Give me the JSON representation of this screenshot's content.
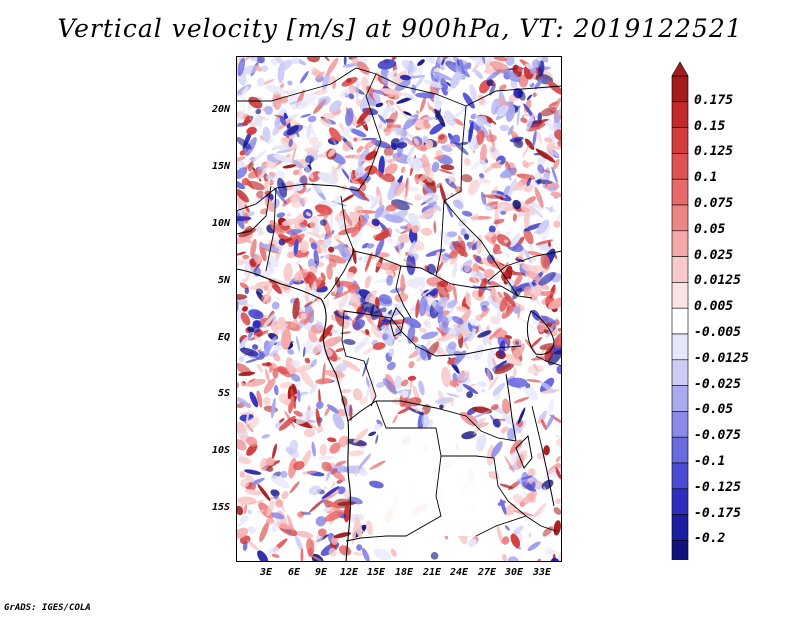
{
  "title": "Vertical velocity [m/s] at 900hPa, VT: 2019122521",
  "credit": "GrADS: IGES/COLA",
  "map": {
    "lat_labels": [
      "20N",
      "15N",
      "10N",
      "5N",
      "EQ",
      "5S",
      "10S",
      "15S"
    ],
    "lon_labels": [
      "3E",
      "6E",
      "9E",
      "12E",
      "15E",
      "18E",
      "21E",
      "24E",
      "27E",
      "30E",
      "33E"
    ],
    "field": "vertical velocity, mixed positive (red) and negative (blue) cells; near-zero (white) over southern interior"
  },
  "colorbar": {
    "labels": [
      "0.175",
      "0.15",
      "0.125",
      "0.1",
      "0.075",
      "0.05",
      "0.025",
      "0.0125",
      "0.005",
      "-0.005",
      "-0.0125",
      "-0.025",
      "-0.05",
      "-0.075",
      "-0.1",
      "-0.125",
      "-0.175",
      "-0.2"
    ],
    "colors": [
      "#a51b1b",
      "#c42a2a",
      "#d43e3e",
      "#e05252",
      "#e86a6a",
      "#ef8686",
      "#f5a8a8",
      "#f9caca",
      "#fce4e4",
      "#ffffff",
      "#e6e6fb",
      "#ccccf6",
      "#aaaaf0",
      "#8a8ae8",
      "#6b6be0",
      "#4b4bd3",
      "#2e2ebf",
      "#1c1ca0",
      "#12127e"
    ]
  }
}
